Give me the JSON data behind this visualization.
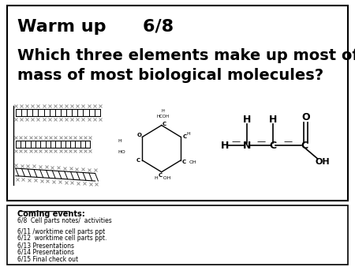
{
  "title_line1": "Warm up      6/8",
  "title_line2": "Which three elements make up most of the\nmass of most biological molecules?",
  "coming_events_title": "Coming events:",
  "coming_events_line1": "6/8  Cell parts notes/  activities",
  "coming_events_line2": "6/11 /worktime cell parts ppt",
  "coming_events_line3": "6/12  worktime cell parts ppt.",
  "coming_events_line4": "6/13 Presentations",
  "coming_events_line5": "6/14 Presentations",
  "coming_events_line6": "6/15 Final check out",
  "bg_color": "#ffffff",
  "border_color": "#000000",
  "text_color": "#000000",
  "figsize": [
    4.5,
    3.38
  ],
  "dpi": 100
}
